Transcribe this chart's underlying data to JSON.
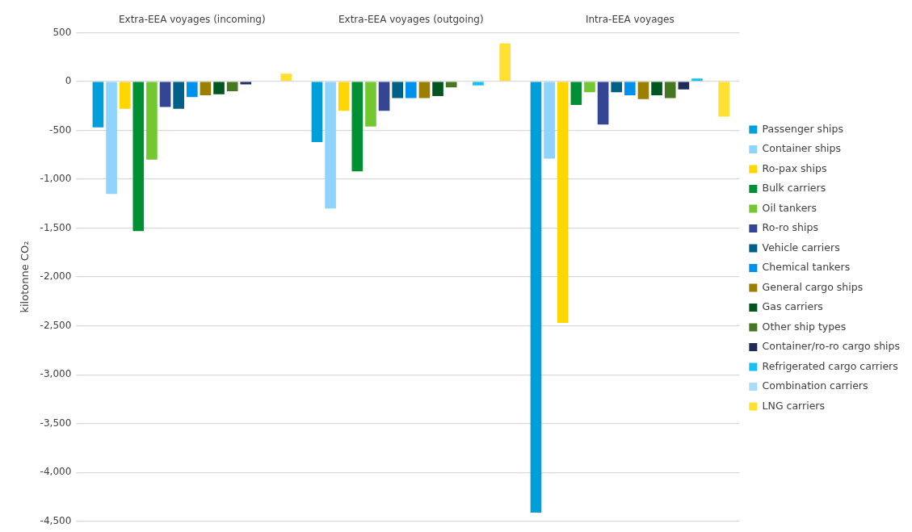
{
  "chart_data": {
    "type": "bar",
    "ylabel": "kilotonne CO₂",
    "categories": [
      "Extra-EEA voyages (incoming)",
      "Extra-EEA voyages (outgoing)",
      "Intra-EEA voyages"
    ],
    "series": [
      {
        "name": "Passenger ships",
        "color": "#009fd9",
        "values": [
          -470,
          -620,
          -4410
        ]
      },
      {
        "name": "Container ships",
        "color": "#8fd3ff",
        "values": [
          -1150,
          -1300,
          -790
        ]
      },
      {
        "name": "Ro-pax ships",
        "color": "#ffd700",
        "values": [
          -280,
          -300,
          -2470
        ]
      },
      {
        "name": "Bulk carriers",
        "color": "#008f32",
        "values": [
          -1530,
          -920,
          -240
        ]
      },
      {
        "name": "Oil tankers",
        "color": "#73c831",
        "values": [
          -800,
          -460,
          -110
        ]
      },
      {
        "name": "Ro-ro ships",
        "color": "#334593",
        "values": [
          -260,
          -300,
          -440
        ]
      },
      {
        "name": "Vehicle carriers",
        "color": "#005f86",
        "values": [
          -280,
          -170,
          -110
        ]
      },
      {
        "name": "Chemical tankers",
        "color": "#0091ec",
        "values": [
          -160,
          -170,
          -140
        ]
      },
      {
        "name": "General cargo ships",
        "color": "#9a7f00",
        "values": [
          -140,
          -170,
          -180
        ]
      },
      {
        "name": "Gas carriers",
        "color": "#00561e",
        "values": [
          -130,
          -150,
          -140
        ]
      },
      {
        "name": "Other ship types",
        "color": "#457820",
        "values": [
          -100,
          -60,
          -170
        ]
      },
      {
        "name": "Container/ro-ro cargo ships",
        "color": "#1f2b5c",
        "values": [
          -30,
          null,
          -80
        ]
      },
      {
        "name": "Refrigerated cargo carriers",
        "color": "#16c0f2",
        "values": [
          null,
          -40,
          30
        ]
      },
      {
        "name": "Combination carriers",
        "color": "#a7dcfb",
        "values": [
          null,
          null,
          null
        ]
      },
      {
        "name": "LNG carriers",
        "color": "#ffe033",
        "values": [
          80,
          390,
          -360
        ]
      }
    ],
    "ylim": [
      -4500,
      500
    ],
    "yticks": [
      500,
      0,
      {
        "value": -500,
        "label": "-500"
      },
      {
        "value": -1000,
        "label": "-1,000"
      },
      {
        "value": -1500,
        "label": "-1,500"
      },
      {
        "value": -2000,
        "label": "-2,000"
      },
      {
        "value": -2500,
        "label": "-2,500"
      },
      {
        "value": -3000,
        "label": "-3,000"
      },
      {
        "value": -3500,
        "label": "-3,500"
      },
      {
        "value": -4000,
        "label": "-4,000"
      },
      {
        "value": -4500,
        "label": "-4,500"
      }
    ],
    "grid": "y",
    "legend": "right"
  }
}
